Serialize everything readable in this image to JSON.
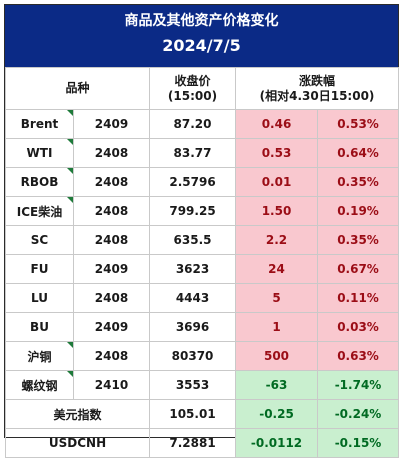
{
  "title": "商品及其他资产价格变化",
  "date": "2024/7/5",
  "headers": {
    "product": "品种",
    "close_line1": "收盘价",
    "close_line2": "(15:00)",
    "change_line1": "涨跌幅",
    "change_line2": "(相对4.30日15:00)"
  },
  "rows": [
    {
      "name": "Brent",
      "contract": "2409",
      "close": "87.20",
      "chg": "0.46",
      "pct": "0.53%",
      "dir": "up"
    },
    {
      "name": "WTI",
      "contract": "2408",
      "close": "83.77",
      "chg": "0.53",
      "pct": "0.64%",
      "dir": "up"
    },
    {
      "name": "RBOB",
      "contract": "2408",
      "close": "2.5796",
      "chg": "0.01",
      "pct": "0.35%",
      "dir": "up"
    },
    {
      "name": "ICE柴油",
      "contract": "2408",
      "close": "799.25",
      "chg": "1.50",
      "pct": "0.19%",
      "dir": "up"
    },
    {
      "name": "SC",
      "contract": "2408",
      "close": "635.5",
      "chg": "2.2",
      "pct": "0.35%",
      "dir": "up"
    },
    {
      "name": "FU",
      "contract": "2409",
      "close": "3623",
      "chg": "24",
      "pct": "0.67%",
      "dir": "up"
    },
    {
      "name": "LU",
      "contract": "2408",
      "close": "4443",
      "chg": "5",
      "pct": "0.11%",
      "dir": "up"
    },
    {
      "name": "BU",
      "contract": "2409",
      "close": "3696",
      "chg": "1",
      "pct": "0.03%",
      "dir": "up"
    },
    {
      "name": "沪铜",
      "contract": "2408",
      "close": "80370",
      "chg": "500",
      "pct": "0.63%",
      "dir": "up"
    },
    {
      "name": "螺纹钢",
      "contract": "2410",
      "close": "3553",
      "chg": "-63",
      "pct": "-1.74%",
      "dir": "down"
    }
  ],
  "fx_rows": [
    {
      "name": "美元指数",
      "close": "105.01",
      "chg": "-0.25",
      "pct": "-0.24%",
      "dir": "down"
    },
    {
      "name": "USDCNH",
      "close": "7.2881",
      "chg": "-0.0112",
      "pct": "-0.15%",
      "dir": "down"
    }
  ],
  "colors": {
    "header_bg": "#0b2a86",
    "up_bg": "#f9c8cf",
    "down_bg": "#c9efcf",
    "up_text": "#9b0d16",
    "down_text": "#006a22"
  }
}
